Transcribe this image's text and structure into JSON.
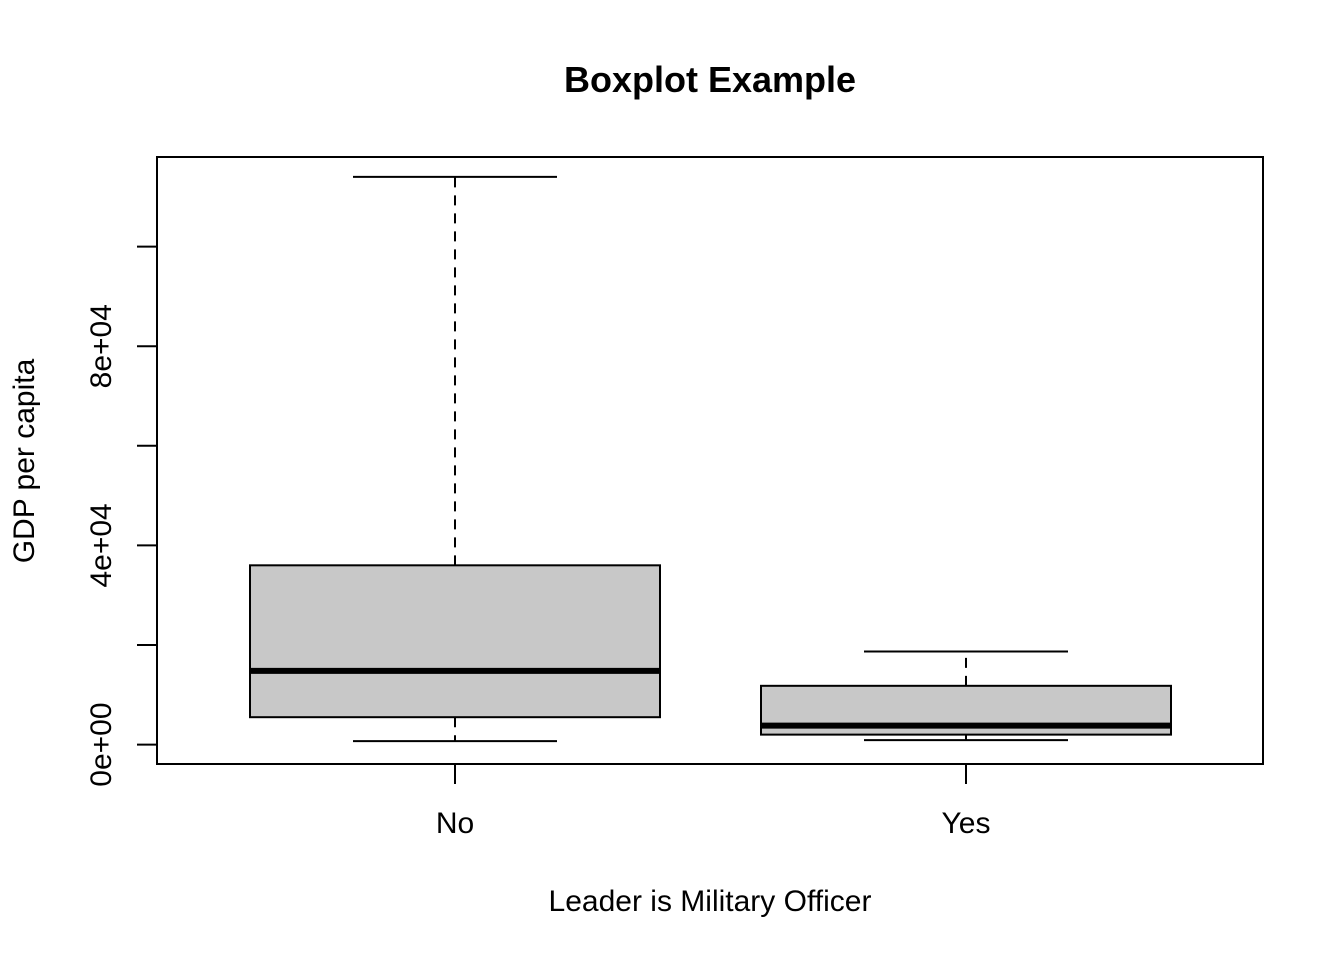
{
  "chart_data": {
    "type": "boxplot",
    "title": "Boxplot Example",
    "xlabel": "Leader is Military Officer",
    "ylabel": "GDP per capita",
    "ylim": [
      -3900,
      118000
    ],
    "y_ticks": [
      0,
      20000,
      40000,
      60000,
      80000,
      100000
    ],
    "y_tick_labels": [
      "0e+00",
      "",
      "4e+04",
      "",
      "8e+04",
      ""
    ],
    "categories": [
      "No",
      "Yes"
    ],
    "box_fill": "#c8c8c8",
    "whisker_style": "dashed",
    "boxes": [
      {
        "name": "No",
        "whisker_low": 700,
        "q1": 5500,
        "median": 14800,
        "q3": 36000,
        "whisker_high": 114000
      },
      {
        "name": "Yes",
        "whisker_low": 900,
        "q1": 2000,
        "median": 3800,
        "q3": 11800,
        "whisker_high": 18700
      }
    ]
  }
}
